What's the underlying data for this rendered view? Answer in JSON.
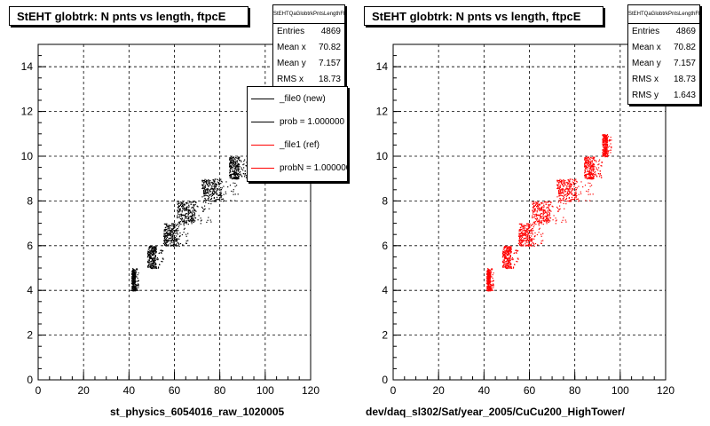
{
  "footer_note": "",
  "chart_data": [
    {
      "type": "scatter",
      "title": "StEHT globtrk: N pnts vs length, ftpcE",
      "xlabel": "st_physics_6054016_raw_1020005",
      "ylabel": "",
      "xlim": [
        0,
        120
      ],
      "ylim": [
        0,
        15
      ],
      "x_ticks": [
        "0",
        "20",
        "40",
        "60",
        "80",
        "100",
        "120"
      ],
      "y_ticks": [
        "0",
        "2",
        "4",
        "6",
        "8",
        "10",
        "12",
        "14"
      ],
      "grid": true,
      "series": [
        {
          "name": "_file0 (new)",
          "color": "#000000",
          "clusters": [
            {
              "n_points": 5,
              "x_range": [
                41,
                44
              ],
              "dense": true
            },
            {
              "n_points": 6,
              "x_range": [
                48,
                55
              ],
              "dense": true
            },
            {
              "n_points": 7,
              "x_range": [
                55,
                66
              ],
              "dense": true
            },
            {
              "n_points": 8,
              "x_range": [
                61,
                76
              ],
              "dense": true
            },
            {
              "n_points": 9,
              "x_range": [
                72,
                88
              ],
              "dense": true
            },
            {
              "n_points": 10,
              "x_range": [
                84,
                92
              ],
              "dense": true
            }
          ]
        }
      ],
      "stats": {
        "name": "StEHTQaGlobtrkPntsLengthFE",
        "rows": [
          {
            "label": "Entries",
            "value": "4869"
          },
          {
            "label": "Mean x",
            "value": "70.82"
          },
          {
            "label": "Mean y",
            "value": "7.157"
          },
          {
            "label": "RMS x",
            "value": "18.73"
          }
        ]
      },
      "legend": [
        {
          "label": "_file0 (new)",
          "color": "#000000"
        },
        {
          "label": "prob = 1.000000",
          "color": "#000000"
        },
        {
          "label": "_file1 (ref)",
          "color": "#ff0000"
        },
        {
          "label": "probN = 1.000000",
          "color": "#ff0000"
        }
      ]
    },
    {
      "type": "scatter",
      "title": "StEHT globtrk: N pnts vs length, ftpcE",
      "xlabel": "dev/daq_sl302/Sat/year_2005/CuCu200_HighTower/",
      "ylabel": "",
      "xlim": [
        0,
        120
      ],
      "ylim": [
        0,
        15
      ],
      "x_ticks": [
        "0",
        "20",
        "40",
        "60",
        "80",
        "100",
        "120"
      ],
      "y_ticks": [
        "0",
        "2",
        "4",
        "6",
        "8",
        "10",
        "12",
        "14"
      ],
      "grid": true,
      "series": [
        {
          "name": "_file1 (ref)",
          "color": "#ff0000",
          "clusters": [
            {
              "n_points": 5,
              "x_range": [
                41,
                44
              ],
              "dense": true
            },
            {
              "n_points": 6,
              "x_range": [
                48,
                55
              ],
              "dense": true
            },
            {
              "n_points": 7,
              "x_range": [
                55,
                66
              ],
              "dense": true
            },
            {
              "n_points": 8,
              "x_range": [
                61,
                76
              ],
              "dense": true
            },
            {
              "n_points": 9,
              "x_range": [
                72,
                88
              ],
              "dense": true
            },
            {
              "n_points": 10,
              "x_range": [
                84,
                92
              ],
              "dense": true
            },
            {
              "n_points": 11,
              "x_range": [
                92,
                96
              ],
              "dense": true
            }
          ]
        }
      ],
      "stats": {
        "name": "StEHTQaGlobtrkPntsLengthFE",
        "rows": [
          {
            "label": "Entries",
            "value": "4869"
          },
          {
            "label": "Mean x",
            "value": "70.82"
          },
          {
            "label": "Mean y",
            "value": "7.157"
          },
          {
            "label": "RMS x",
            "value": "18.73"
          },
          {
            "label": "RMS y",
            "value": "1.643"
          }
        ]
      }
    }
  ]
}
